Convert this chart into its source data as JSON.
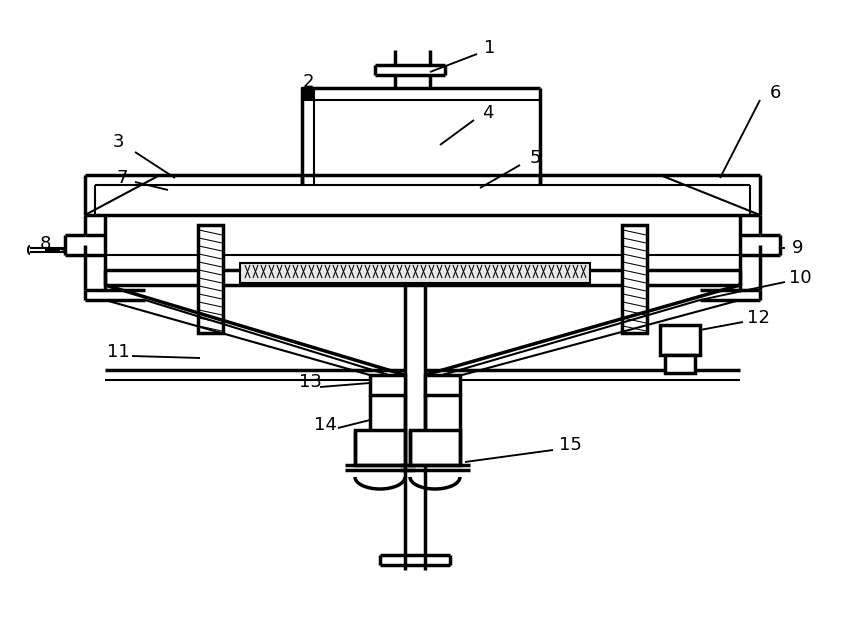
{
  "bg_color": "#ffffff",
  "line_color": "#000000",
  "lw": 1.5,
  "lw2": 2.5,
  "fig_w": 8.5,
  "fig_h": 6.25
}
